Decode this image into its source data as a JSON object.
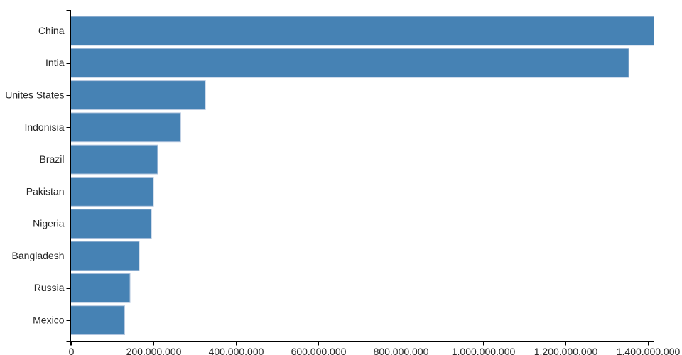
{
  "chart_data": {
    "type": "bar",
    "orientation": "horizontal",
    "title": "",
    "xlabel": "",
    "ylabel": "",
    "grid": false,
    "legend": null,
    "categories": [
      "China",
      "Intia",
      "Unites States",
      "Indonisia",
      "Brazil",
      "Pakistan",
      "Nigeria",
      "Bangladesh",
      "Russia",
      "Mexico"
    ],
    "values": [
      1415045928,
      1354051854,
      326766748,
      266794980,
      210867954,
      200813818,
      195875237,
      166368149,
      143964709,
      130759074
    ],
    "xlim": [
      0,
      1415045928
    ],
    "x_ticks": {
      "values": [
        0,
        200000000,
        400000000,
        600000000,
        800000000,
        1000000000,
        1200000000,
        1400000000
      ],
      "labels": [
        "0",
        "200,000,000",
        "400,000,000",
        "600,000,000",
        "800,000,000",
        "1,000,000,000",
        "1,200,000,000",
        "1,400,000,000"
      ]
    },
    "colors": {
      "bar_fill": "#4682b4",
      "bar_stroke": "#b0c4de",
      "axis_line": "#000000",
      "tick_text": "#262626"
    }
  }
}
